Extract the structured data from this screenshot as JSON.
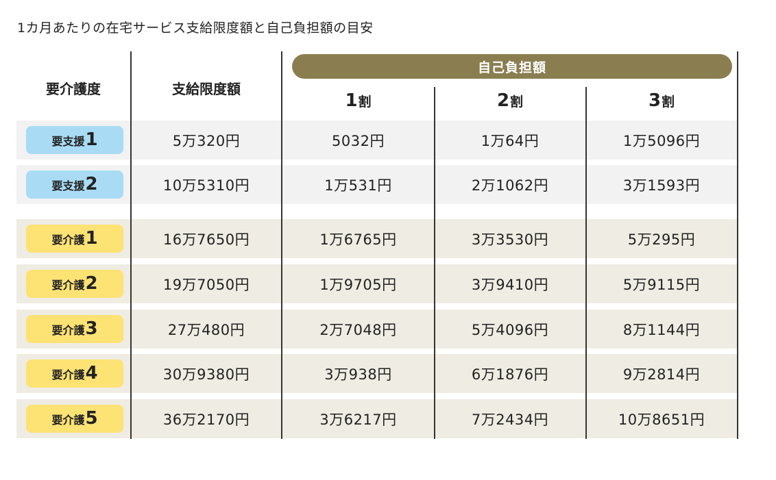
{
  "title": "1カ月あたりの在宅サービス支給限度額と自己負担額の目安",
  "colors": {
    "header_pill": "#8a7e50",
    "support_badge": "#a9dcf4",
    "care_badge": "#fde274",
    "support_row_bg": "#f2f2f2",
    "care_row_bg": "#efece3"
  },
  "chart_data": {
    "type": "table",
    "title": "1カ月あたりの在宅サービス支給限度額と自己負担額の目安",
    "headers": {
      "level": "要介護度",
      "limit": "支給限度額",
      "burden_group": "自己負担額",
      "rates": [
        {
          "num": "1",
          "unit": "割"
        },
        {
          "num": "2",
          "unit": "割"
        },
        {
          "num": "3",
          "unit": "割"
        }
      ]
    },
    "rows": [
      {
        "level_text": "要支援",
        "level_num": "1",
        "type": "support",
        "limit": "5万320円",
        "r1": "5032円",
        "r2": "1万64円",
        "r3": "1万5096円"
      },
      {
        "level_text": "要支援",
        "level_num": "2",
        "type": "support",
        "limit": "10万5310円",
        "r1": "1万531円",
        "r2": "2万1062円",
        "r3": "3万1593円"
      },
      {
        "level_text": "要介護",
        "level_num": "1",
        "type": "care",
        "limit": "16万7650円",
        "r1": "1万6765円",
        "r2": "3万3530円",
        "r3": "5万295円"
      },
      {
        "level_text": "要介護",
        "level_num": "2",
        "type": "care",
        "limit": "19万7050円",
        "r1": "1万9705円",
        "r2": "3万9410円",
        "r3": "5万9115円"
      },
      {
        "level_text": "要介護",
        "level_num": "3",
        "type": "care",
        "limit": "27万480円",
        "r1": "2万7048円",
        "r2": "5万4096円",
        "r3": "8万1144円"
      },
      {
        "level_text": "要介護",
        "level_num": "4",
        "type": "care",
        "limit": "30万9380円",
        "r1": "3万938円",
        "r2": "6万1876円",
        "r3": "9万2814円"
      },
      {
        "level_text": "要介護",
        "level_num": "5",
        "type": "care",
        "limit": "36万2170円",
        "r1": "3万6217円",
        "r2": "7万2434円",
        "r3": "10万8651円"
      }
    ]
  }
}
